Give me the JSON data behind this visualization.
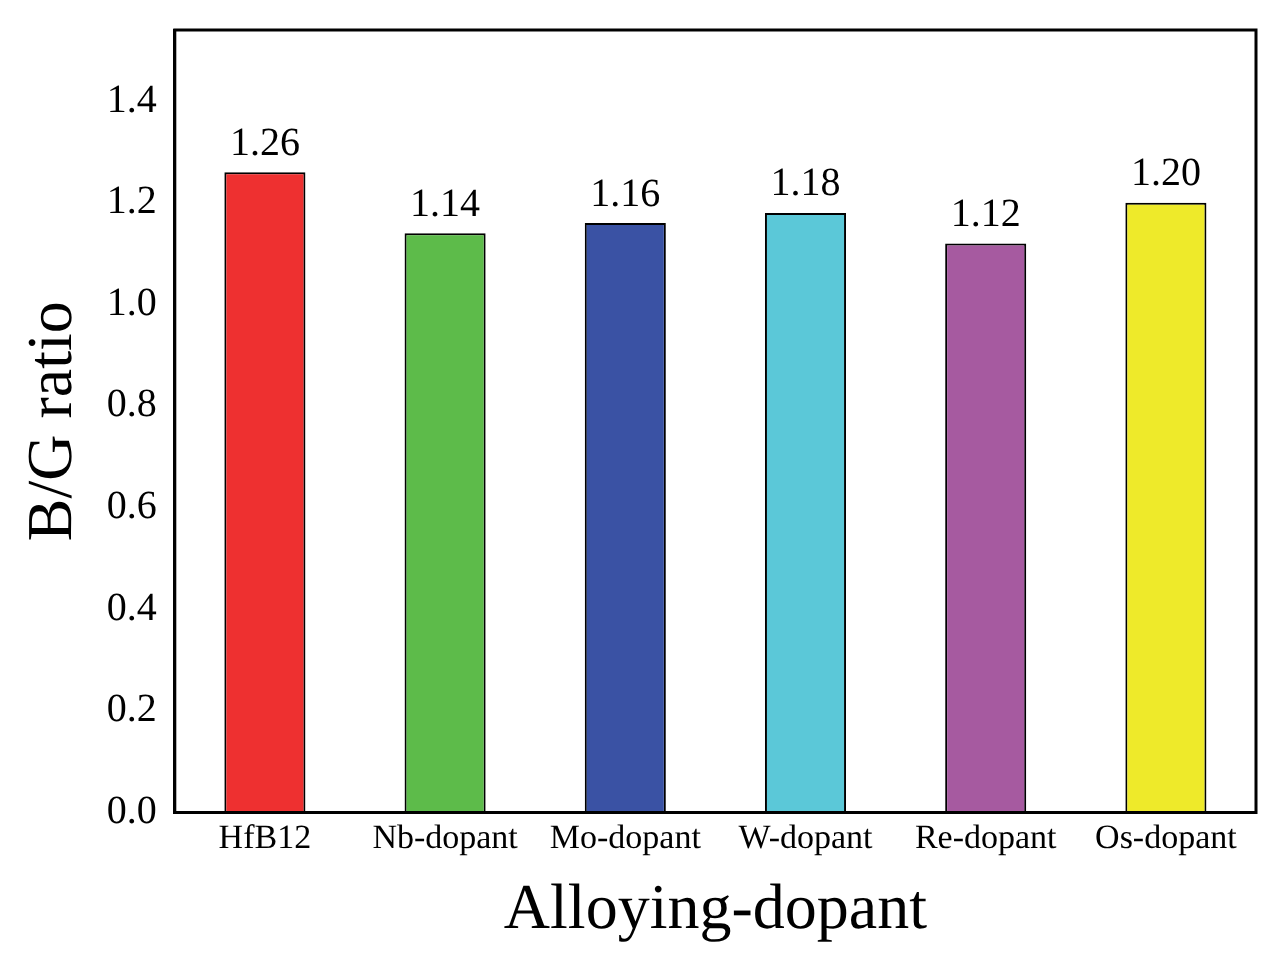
{
  "chart_data": {
    "type": "bar",
    "xlabel": "Alloying-dopant",
    "ylabel": "B/G ratio",
    "categories": [
      "HfB12",
      "Nb-dopant",
      "Mo-dopant",
      "W-dopant",
      "Re-dopant",
      "Os-dopant"
    ],
    "values": [
      1.26,
      1.14,
      1.16,
      1.18,
      1.12,
      1.2
    ],
    "colors": [
      "#ee3030",
      "#5dbb4a",
      "#3a52a4",
      "#5bc8d8",
      "#a65aa0",
      "#eeea2a"
    ],
    "ylim": [
      0,
      1.54
    ],
    "yticks": [
      "0.0",
      "0.2",
      "0.4",
      "0.6",
      "0.8",
      "1.0",
      "1.2",
      "1.4"
    ],
    "value_labels": [
      "1.26",
      "1.14",
      "1.16",
      "1.18",
      "1.12",
      "1.20"
    ],
    "grid": false,
    "legend": false
  }
}
